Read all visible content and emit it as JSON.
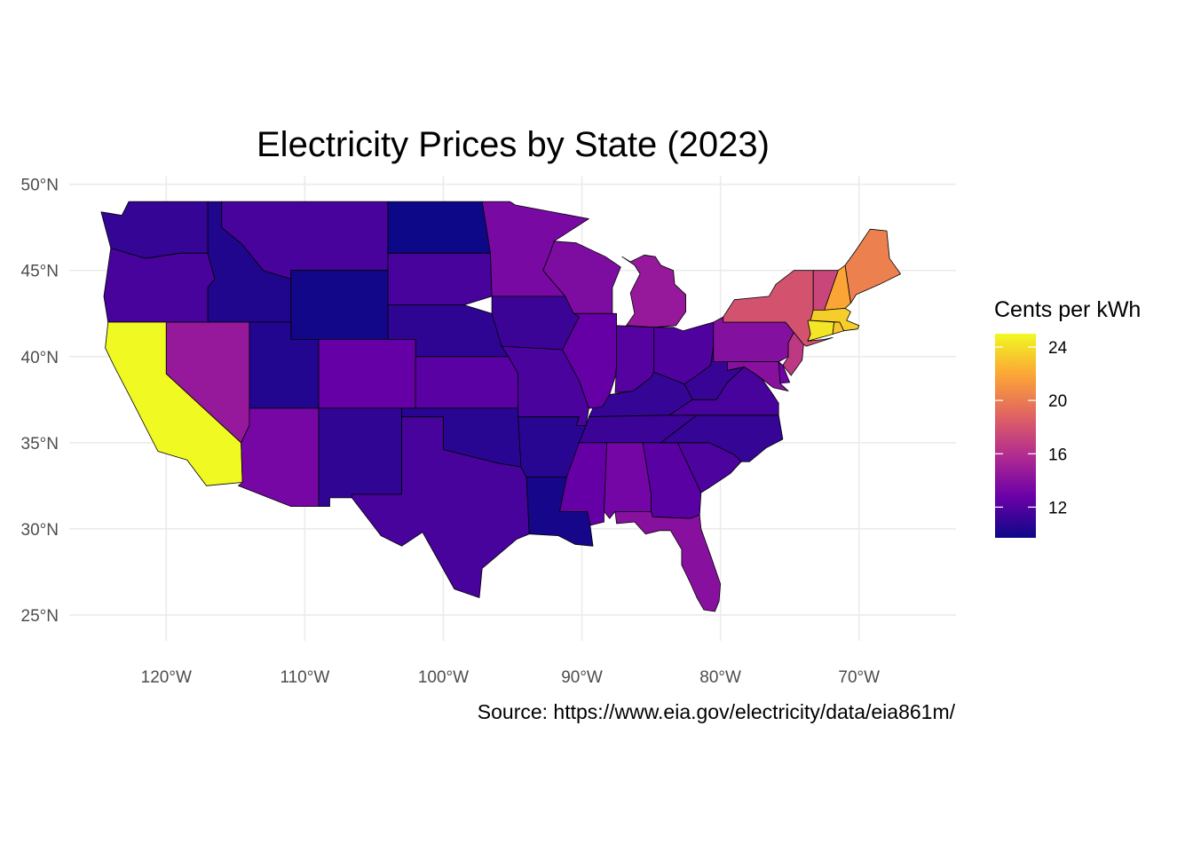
{
  "title": "Electricity Prices by State (2023)",
  "caption": "Source: https://www.eia.gov/electricity/data/eia861m/",
  "axes": {
    "x_ticks": [
      "120°W",
      "110°W",
      "100°W",
      "90°W",
      "80°W",
      "70°W"
    ],
    "y_ticks": [
      "50°N",
      "45°N",
      "40°N",
      "35°N",
      "30°N",
      "25°N"
    ]
  },
  "legend": {
    "title": "Cents per kWh",
    "labels": [
      "24",
      "20",
      "16",
      "12"
    ],
    "colors": [
      "#0d0887",
      "#6a00a8",
      "#b12a90",
      "#e16462",
      "#fca636",
      "#f0f921"
    ]
  },
  "chart_data": {
    "type": "choropleth",
    "title": "Electricity Prices by State (2023)",
    "xlabel": "",
    "ylabel": "",
    "lon_range": [
      -127,
      -63
    ],
    "lat_range": [
      23.5,
      50.5
    ],
    "value_range": [
      9.7,
      25
    ],
    "states": [
      {
        "name": "WA",
        "value": 11.0
      },
      {
        "name": "OR",
        "value": 11.6
      },
      {
        "name": "CA",
        "value": 25.0
      },
      {
        "name": "ID",
        "value": 10.3
      },
      {
        "name": "NV",
        "value": 14.6
      },
      {
        "name": "MT",
        "value": 11.6
      },
      {
        "name": "WY",
        "value": 9.9
      },
      {
        "name": "UT",
        "value": 10.4
      },
      {
        "name": "AZ",
        "value": 13.3
      },
      {
        "name": "CO",
        "value": 12.6
      },
      {
        "name": "NM",
        "value": 10.9
      },
      {
        "name": "ND",
        "value": 9.7
      },
      {
        "name": "SD",
        "value": 11.6
      },
      {
        "name": "NE",
        "value": 10.8
      },
      {
        "name": "KS",
        "value": 12.2
      },
      {
        "name": "OK",
        "value": 10.6
      },
      {
        "name": "TX",
        "value": 11.6
      },
      {
        "name": "MN",
        "value": 13.4
      },
      {
        "name": "IA",
        "value": 11.2
      },
      {
        "name": "MO",
        "value": 11.7
      },
      {
        "name": "AR",
        "value": 10.6
      },
      {
        "name": "LA",
        "value": 10.0
      },
      {
        "name": "WI",
        "value": 13.6
      },
      {
        "name": "IL",
        "value": 12.6
      },
      {
        "name": "MI",
        "value": 14.6
      },
      {
        "name": "IN",
        "value": 12.1
      },
      {
        "name": "OH",
        "value": 11.9
      },
      {
        "name": "KY",
        "value": 11.0
      },
      {
        "name": "TN",
        "value": 11.2
      },
      {
        "name": "MS",
        "value": 12.6
      },
      {
        "name": "AL",
        "value": 13.2
      },
      {
        "name": "GA",
        "value": 12.2
      },
      {
        "name": "FL",
        "value": 14.0
      },
      {
        "name": "SC",
        "value": 11.8
      },
      {
        "name": "NC",
        "value": 11.0
      },
      {
        "name": "VA",
        "value": 11.6
      },
      {
        "name": "WV",
        "value": 11.1
      },
      {
        "name": "PA",
        "value": 13.9
      },
      {
        "name": "NY",
        "value": 18.0
      },
      {
        "name": "NJ",
        "value": 16.6
      },
      {
        "name": "DE",
        "value": 12.9
      },
      {
        "name": "MD",
        "value": 14.0
      },
      {
        "name": "VT",
        "value": 17.3
      },
      {
        "name": "NH",
        "value": 21.9
      },
      {
        "name": "ME",
        "value": 20.2
      },
      {
        "name": "MA",
        "value": 23.4
      },
      {
        "name": "CT",
        "value": 24.3
      },
      {
        "name": "RI",
        "value": 23.0
      }
    ]
  }
}
